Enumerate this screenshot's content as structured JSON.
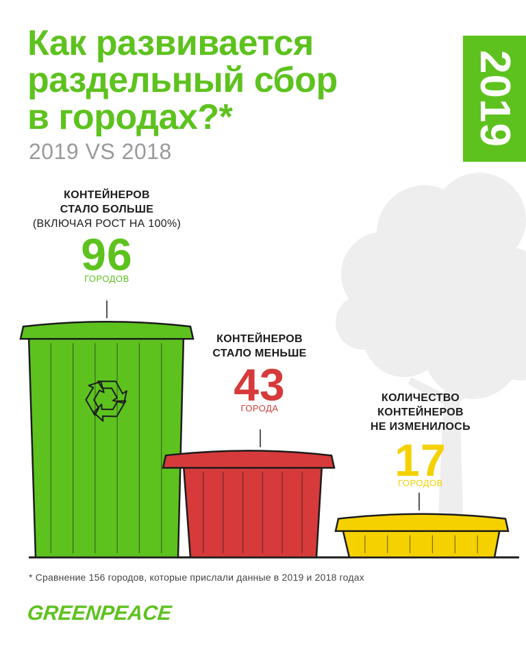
{
  "title_lines": [
    "Как развивается",
    "раздельный сбор",
    "в городах?*"
  ],
  "subtitle": "2019 VS 2018",
  "year_badge": "2019",
  "colors": {
    "green": "#5dc21e",
    "red": "#d63a3a",
    "yellow": "#f5d100",
    "tree": "#eeeeee"
  },
  "chart_data": {
    "type": "bar",
    "categories": [
      "Контейнеров стало больше",
      "Контейнеров стало меньше",
      "Количество контейнеров не изменилось"
    ],
    "values": [
      96,
      43,
      17
    ],
    "units": [
      "городов",
      "города",
      "городов"
    ],
    "total": 156,
    "title": "Как развивается раздельный сбор в городах?*",
    "subtitle": "2019 VS 2018"
  },
  "groups": [
    {
      "cap_line1": "Контейнеров",
      "cap_line2": "стало больше",
      "note": "(включая рост на 100%)",
      "value": "96",
      "unit": "городов",
      "icon": "recycle-icon"
    },
    {
      "cap_line1": "Контейнеров",
      "cap_line2": "стало меньше",
      "value": "43",
      "unit": "города",
      "icon": "recycle-icon"
    },
    {
      "cap_line1": "Количество",
      "cap_line2": "контейнеров",
      "cap_line3": "не изменилось",
      "value": "17",
      "unit": "городов"
    }
  ],
  "footnote": "* Сравнение 156 городов, которые прислали данные в 2019 и 2018 годах",
  "logo": "GREENPEACE"
}
